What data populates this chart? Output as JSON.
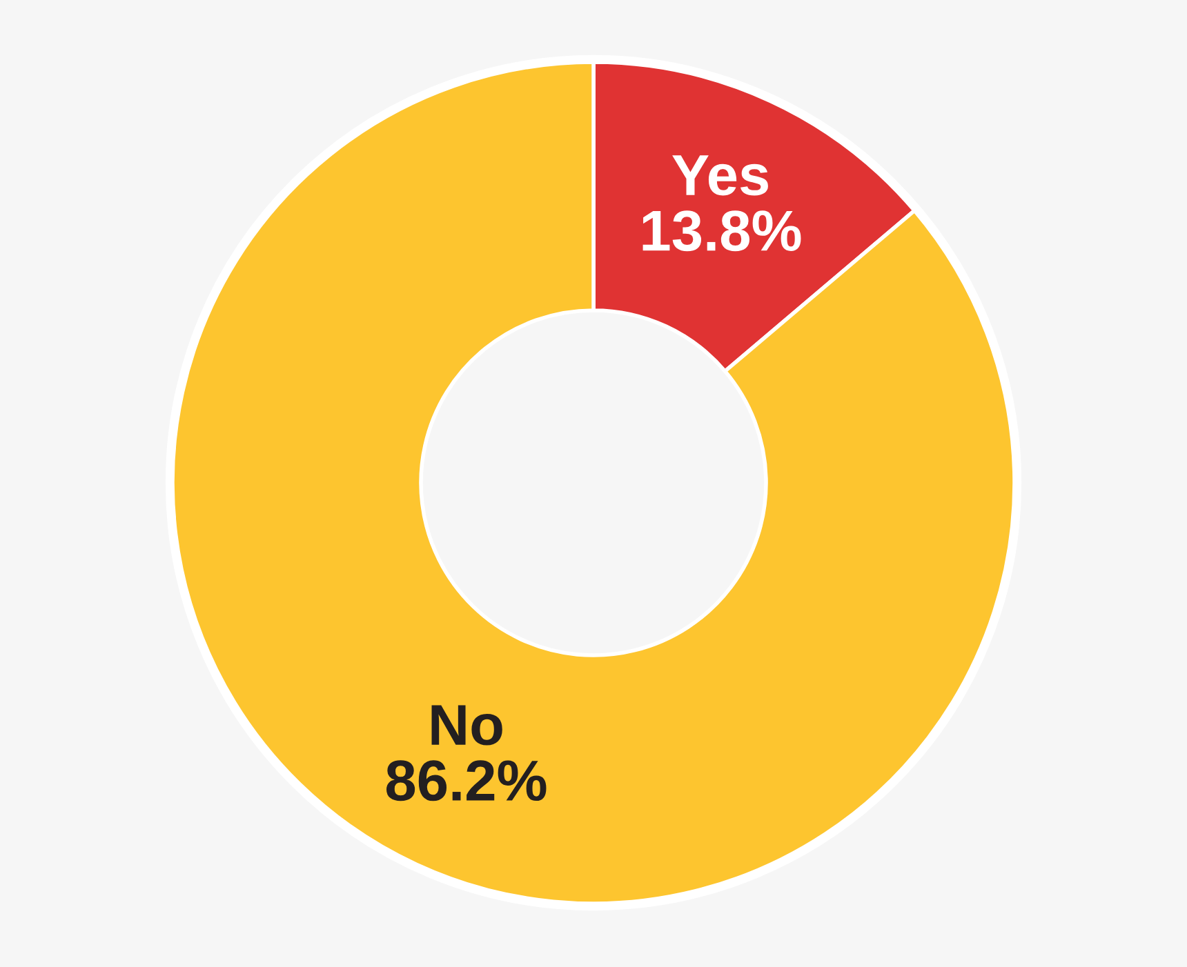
{
  "chart_data": {
    "type": "donut",
    "categories": [
      "Yes",
      "No"
    ],
    "values": [
      13.8,
      86.2
    ],
    "colors": [
      "#e03333",
      "#fdc52f"
    ],
    "value_labels": [
      "13.8%",
      "86.2%"
    ],
    "legend": false
  }
}
